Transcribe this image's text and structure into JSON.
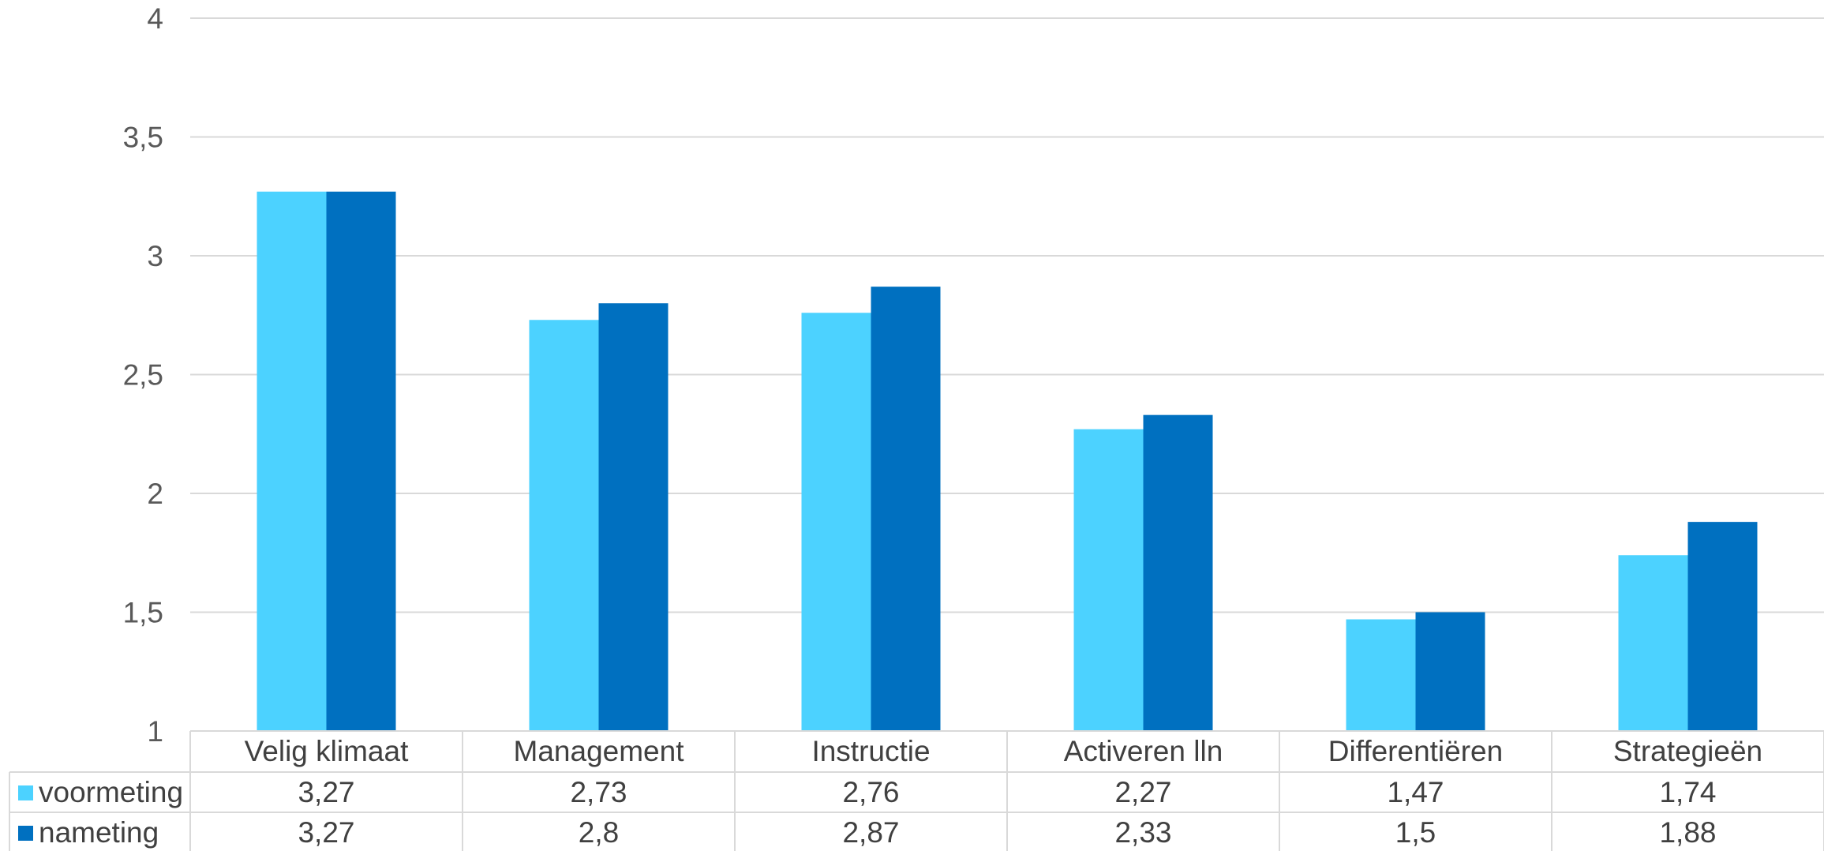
{
  "chart_data": {
    "type": "bar",
    "title": "",
    "xlabel": "",
    "ylabel": "",
    "ylim": [
      1,
      4
    ],
    "yticks": [
      1,
      1.5,
      2,
      2.5,
      3,
      3.5,
      4
    ],
    "ytick_labels": [
      "1",
      "1,5",
      "2",
      "2,5",
      "3",
      "3,5",
      "4"
    ],
    "grid": true,
    "legend": "data-table-left",
    "categories": [
      "Velig klimaat",
      "Management",
      "Instructie",
      "Activeren lln",
      "Differentiëren",
      "Strategieën"
    ],
    "series": [
      {
        "name": "voormeting",
        "color": "#4CD2FF",
        "values": [
          3.27,
          2.73,
          2.76,
          2.27,
          1.47,
          1.74
        ],
        "labels": [
          "3,27",
          "2,73",
          "2,76",
          "2,27",
          "1,47",
          "1,74"
        ]
      },
      {
        "name": "nameting",
        "color": "#0070C0",
        "values": [
          3.27,
          2.8,
          2.87,
          2.33,
          1.5,
          1.88
        ],
        "labels": [
          "3,27",
          "2,8",
          "2,87",
          "2,33",
          "1,5",
          "1,88"
        ]
      }
    ]
  }
}
